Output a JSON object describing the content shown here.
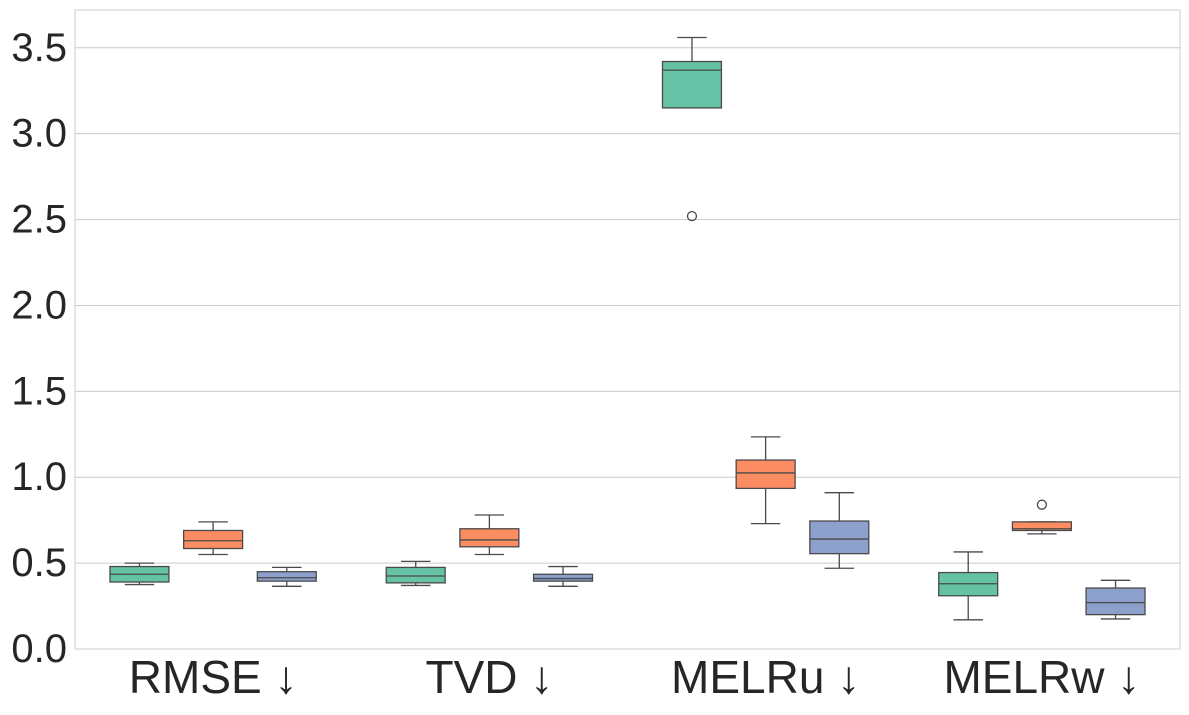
{
  "chart_data": {
    "type": "box",
    "title": "",
    "xlabel": "",
    "ylabel": "",
    "ylim": [
      0,
      3.72
    ],
    "y_ticks": [
      "0.0",
      "0.5",
      "1.0",
      "1.5",
      "2.0",
      "2.5",
      "3.0",
      "3.5"
    ],
    "y_tick_values": [
      0,
      0.5,
      1.0,
      1.5,
      2.0,
      2.5,
      3.0,
      3.5
    ],
    "grid": "horizontal",
    "legend": "none",
    "categories": [
      "RMSE ↓",
      "TVD ↓",
      "MELRu ↓",
      "MELRw ↓"
    ],
    "series": [
      {
        "color": "#66c2a5",
        "boxes": [
          {
            "whislo": 0.375,
            "q1": 0.39,
            "med": 0.435,
            "q3": 0.48,
            "whishi": 0.5,
            "fliers": []
          },
          {
            "whislo": 0.37,
            "q1": 0.385,
            "med": 0.425,
            "q3": 0.475,
            "whishi": 0.51,
            "fliers": []
          },
          {
            "whislo": 3.15,
            "q1": 3.15,
            "med": 3.37,
            "q3": 3.42,
            "whishi": 3.56,
            "fliers": [
              2.52
            ]
          },
          {
            "whislo": 0.17,
            "q1": 0.31,
            "med": 0.38,
            "q3": 0.445,
            "whishi": 0.565,
            "fliers": []
          }
        ]
      },
      {
        "color": "#fc8d62",
        "boxes": [
          {
            "whislo": 0.55,
            "q1": 0.585,
            "med": 0.63,
            "q3": 0.69,
            "whishi": 0.74,
            "fliers": []
          },
          {
            "whislo": 0.55,
            "q1": 0.595,
            "med": 0.635,
            "q3": 0.7,
            "whishi": 0.78,
            "fliers": []
          },
          {
            "whislo": 0.73,
            "q1": 0.935,
            "med": 1.025,
            "q3": 1.1,
            "whishi": 1.235,
            "fliers": []
          },
          {
            "whislo": 0.67,
            "q1": 0.69,
            "med": 0.7,
            "q3": 0.74,
            "whishi": 0.74,
            "fliers": [
              0.84
            ]
          }
        ]
      },
      {
        "color": "#8da0cb",
        "boxes": [
          {
            "whislo": 0.365,
            "q1": 0.395,
            "med": 0.415,
            "q3": 0.45,
            "whishi": 0.475,
            "fliers": []
          },
          {
            "whislo": 0.365,
            "q1": 0.395,
            "med": 0.41,
            "q3": 0.435,
            "whishi": 0.48,
            "fliers": []
          },
          {
            "whislo": 0.47,
            "q1": 0.555,
            "med": 0.64,
            "q3": 0.745,
            "whishi": 0.91,
            "fliers": []
          },
          {
            "whislo": 0.175,
            "q1": 0.2,
            "med": 0.27,
            "q3": 0.355,
            "whishi": 0.4,
            "fliers": []
          }
        ]
      }
    ]
  }
}
